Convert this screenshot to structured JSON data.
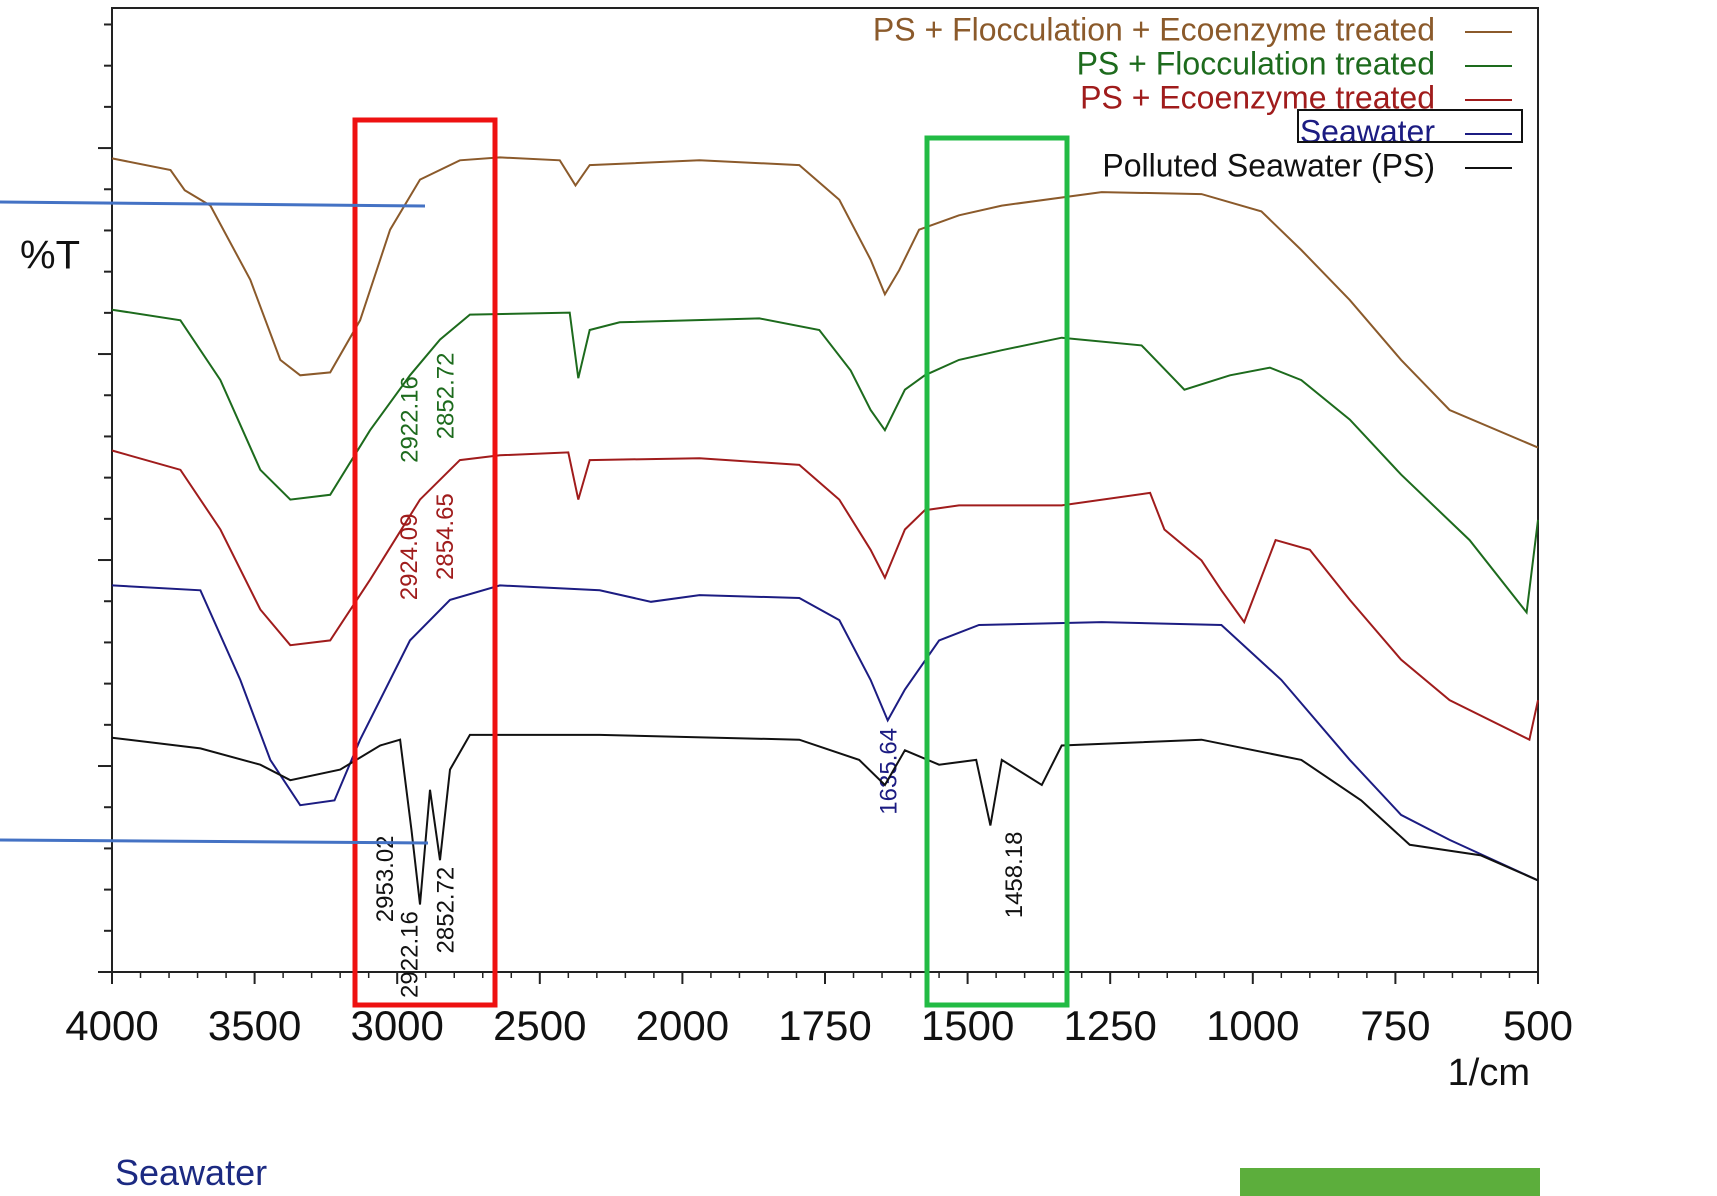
{
  "chart_data": {
    "type": "line",
    "y_label": "%T",
    "x_label": "1/cm",
    "caption": "Seawater",
    "xlim": [
      4000,
      500
    ],
    "xticks": [
      4000,
      3500,
      3000,
      2500,
      2000,
      1750,
      1500,
      1250,
      1000,
      750,
      500
    ],
    "ylim": [
      0,
      100
    ],
    "legend": "upper right",
    "series": [
      {
        "name": "PS + Flocculation + Ecoenzyme treated",
        "color": "#8b5a2b",
        "x": [
          4000,
          3795,
          3745,
          3655,
          3515,
          3410,
          3340,
          3235,
          3130,
          3025,
          2920,
          2780,
          2640,
          2430,
          2375,
          2325,
          1970,
          1795,
          1725,
          1670,
          1645,
          1620,
          1585,
          1515,
          1440,
          1265,
          1090,
          985,
          915,
          830,
          740,
          655,
          500
        ],
        "values": [
          84.4,
          83.2,
          81.1,
          79.5,
          71.8,
          63.5,
          61.9,
          62.2,
          67.6,
          77.0,
          82.2,
          84.2,
          84.5,
          84.2,
          81.6,
          83.7,
          84.2,
          83.7,
          80.1,
          73.9,
          70.3,
          72.8,
          77.0,
          78.5,
          79.5,
          80.9,
          80.7,
          78.9,
          74.9,
          69.7,
          63.5,
          58.3,
          54.4
        ],
        "peaks": []
      },
      {
        "name": "PS + Flocculation treated",
        "color": "#1d6b1d",
        "x": [
          4000,
          3760,
          3620,
          3480,
          3375,
          3235,
          3095,
          2955,
          2850,
          2745,
          2395,
          2365,
          2325,
          2220,
          1865,
          1760,
          1705,
          1670,
          1645,
          1610,
          1575,
          1515,
          1440,
          1335,
          1195,
          1120,
          1040,
          970,
          915,
          830,
          740,
          620,
          520,
          500
        ],
        "values": [
          68.7,
          67.6,
          61.4,
          52.1,
          49.0,
          49.5,
          56.2,
          61.9,
          65.6,
          68.2,
          68.4,
          61.6,
          66.6,
          67.4,
          67.8,
          66.6,
          62.4,
          58.3,
          56.2,
          60.4,
          61.9,
          63.5,
          64.5,
          65.8,
          65.0,
          60.4,
          61.9,
          62.7,
          61.4,
          57.3,
          51.6,
          44.8,
          37.3,
          46.9
        ],
        "peaks": [
          2922.16,
          2852.72
        ]
      },
      {
        "name": "PS + Ecoenzyme treated",
        "color": "#a01c1c",
        "x": [
          4000,
          3760,
          3620,
          3480,
          3375,
          3235,
          3095,
          2920,
          2780,
          2640,
          2400,
          2365,
          2325,
          1970,
          1795,
          1725,
          1670,
          1645,
          1610,
          1575,
          1515,
          1335,
          1180,
          1155,
          1090,
          1055,
          1015,
          960,
          900,
          830,
          740,
          655,
          515,
          500
        ],
        "values": [
          54.1,
          52.1,
          45.9,
          37.6,
          33.9,
          34.4,
          40.7,
          49.0,
          53.1,
          53.6,
          53.9,
          49.0,
          53.1,
          53.3,
          52.6,
          49.0,
          43.8,
          40.9,
          45.9,
          47.9,
          48.4,
          48.4,
          49.7,
          45.9,
          42.7,
          39.6,
          36.3,
          44.8,
          43.8,
          38.6,
          32.4,
          28.2,
          24.1,
          28.2
        ],
        "peaks": [
          2924.09,
          2854.65
        ]
      },
      {
        "name": "Seawater",
        "color": "#1c1c82",
        "x": [
          4000,
          3690,
          3550,
          3445,
          3340,
          3220,
          3130,
          2955,
          2815,
          2640,
          2290,
          2110,
          1970,
          1795,
          1725,
          1670,
          1640,
          1610,
          1550,
          1480,
          1265,
          1055,
          950,
          830,
          740,
          655,
          500
        ],
        "values": [
          40.1,
          39.6,
          30.3,
          22.0,
          17.3,
          17.8,
          24.1,
          34.4,
          38.6,
          40.1,
          39.6,
          38.4,
          39.1,
          38.8,
          36.5,
          30.3,
          26.1,
          29.3,
          34.4,
          36.0,
          36.3,
          36.0,
          30.3,
          22.0,
          16.3,
          13.7,
          9.5
        ],
        "peaks": [
          1635.64
        ]
      },
      {
        "name": "Polluted Seawater (PS)",
        "color": "#111111",
        "x": [
          4000,
          3690,
          3480,
          3375,
          3200,
          3060,
          2990,
          2950,
          2920,
          2885,
          2850,
          2815,
          2745,
          2290,
          1795,
          1690,
          1645,
          1610,
          1550,
          1485,
          1460,
          1440,
          1370,
          1335,
          1090,
          915,
          810,
          725,
          600,
          500
        ],
        "values": [
          24.3,
          23.2,
          21.5,
          19.9,
          21.0,
          23.5,
          24.1,
          14.7,
          7.0,
          18.9,
          11.6,
          21.0,
          24.6,
          24.6,
          24.1,
          22.0,
          19.4,
          23.0,
          21.5,
          22.0,
          15.2,
          22.0,
          19.4,
          23.5,
          24.1,
          22.0,
          17.8,
          13.2,
          12.1,
          9.5
        ],
        "peaks": [
          2953.02,
          2922.16,
          2852.72,
          1458.18
        ]
      }
    ]
  }
}
